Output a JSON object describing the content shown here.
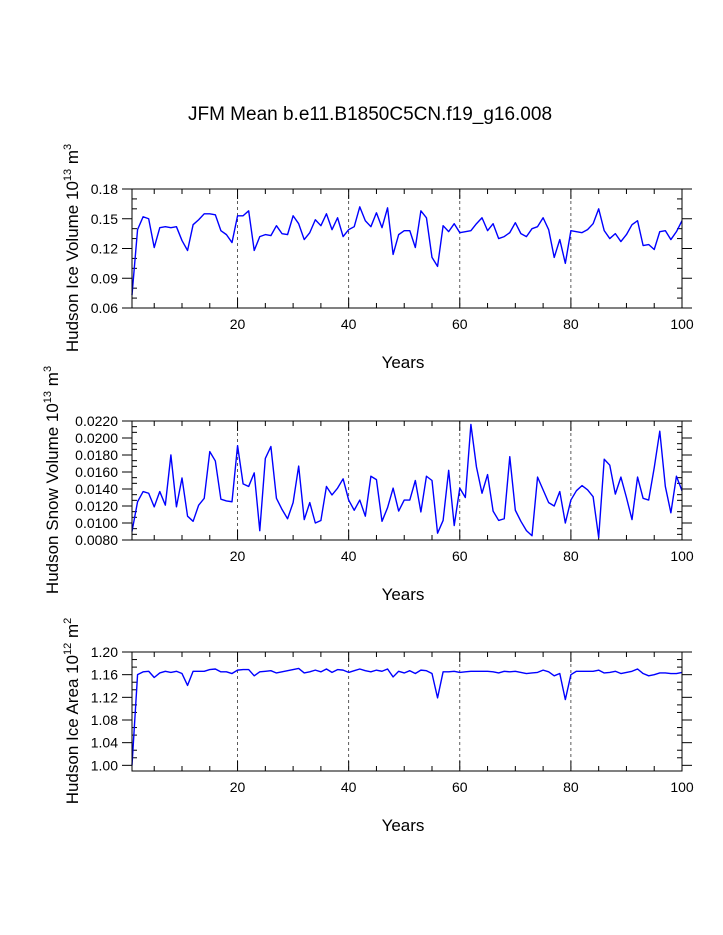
{
  "title": "JFM Mean b.e11.B1850C5CN.f19_g16.008",
  "colors": {
    "series": "#0000ff",
    "axis": "#000000"
  },
  "chart_data": [
    {
      "type": "line",
      "xlabel": "Years",
      "ylabel_main": "Hudson Ice Volume 10",
      "ylabel_exp": "13",
      "ylabel_unit": "m",
      "ylabel_unit_exp": "3",
      "xlim": [
        1,
        100
      ],
      "ylim": [
        0.06,
        0.18
      ],
      "xticks": [
        20,
        40,
        60,
        80,
        100
      ],
      "xtick_labels": [
        "20",
        "40",
        "60",
        "80",
        "100"
      ],
      "yticks": [
        0.06,
        0.09,
        0.12,
        0.15,
        0.18
      ],
      "ytick_labels": [
        "0.06",
        "0.09",
        "0.12",
        "0.15",
        "0.18"
      ],
      "grid_x": [
        20,
        40,
        60,
        80
      ],
      "series": [
        {
          "name": "Hudson Ice Volume",
          "x": [
            1,
            2,
            3,
            4,
            5,
            6,
            7,
            8,
            9,
            10,
            11,
            12,
            13,
            14,
            15,
            16,
            17,
            18,
            19,
            20,
            21,
            22,
            23,
            24,
            25,
            26,
            27,
            28,
            29,
            30,
            31,
            32,
            33,
            34,
            35,
            36,
            37,
            38,
            39,
            40,
            41,
            42,
            43,
            44,
            45,
            46,
            47,
            48,
            49,
            50,
            51,
            52,
            53,
            54,
            55,
            56,
            57,
            58,
            59,
            60,
            61,
            62,
            63,
            64,
            65,
            66,
            67,
            68,
            69,
            70,
            71,
            72,
            73,
            74,
            75,
            76,
            77,
            78,
            79,
            80,
            81,
            82,
            83,
            84,
            85,
            86,
            87,
            88,
            89,
            90,
            91,
            92,
            93,
            94,
            95,
            96,
            97,
            98,
            99,
            100
          ],
          "values": [
            0.073,
            0.139,
            0.152,
            0.15,
            0.121,
            0.141,
            0.142,
            0.141,
            0.142,
            0.128,
            0.118,
            0.144,
            0.149,
            0.155,
            0.155,
            0.154,
            0.138,
            0.134,
            0.126,
            0.153,
            0.153,
            0.158,
            0.118,
            0.132,
            0.134,
            0.133,
            0.143,
            0.135,
            0.134,
            0.153,
            0.145,
            0.129,
            0.136,
            0.149,
            0.143,
            0.155,
            0.139,
            0.151,
            0.132,
            0.139,
            0.142,
            0.162,
            0.148,
            0.142,
            0.156,
            0.141,
            0.161,
            0.114,
            0.134,
            0.138,
            0.138,
            0.121,
            0.158,
            0.151,
            0.111,
            0.102,
            0.143,
            0.137,
            0.145,
            0.136,
            0.137,
            0.138,
            0.145,
            0.151,
            0.138,
            0.145,
            0.13,
            0.132,
            0.136,
            0.146,
            0.135,
            0.132,
            0.14,
            0.142,
            0.151,
            0.139,
            0.111,
            0.129,
            0.105,
            0.138,
            0.137,
            0.136,
            0.139,
            0.145,
            0.16,
            0.138,
            0.13,
            0.135,
            0.127,
            0.134,
            0.144,
            0.148,
            0.123,
            0.124,
            0.119,
            0.137,
            0.138,
            0.129,
            0.137,
            0.148
          ]
        }
      ]
    },
    {
      "type": "line",
      "xlabel": "Years",
      "ylabel_main": "Hudson Snow Volume 10",
      "ylabel_exp": "13",
      "ylabel_unit": "m",
      "ylabel_unit_exp": "3",
      "xlim": [
        1,
        100
      ],
      "ylim": [
        0.008,
        0.022
      ],
      "xticks": [
        20,
        40,
        60,
        80,
        100
      ],
      "xtick_labels": [
        "20",
        "40",
        "60",
        "80",
        "100"
      ],
      "yticks": [
        0.008,
        0.01,
        0.012,
        0.014,
        0.016,
        0.018,
        0.02,
        0.022
      ],
      "ytick_labels": [
        "0.0080",
        "0.0100",
        "0.0120",
        "0.0140",
        "0.0160",
        "0.0180",
        "0.0200",
        "0.0220"
      ],
      "grid_x": [
        20,
        40,
        60,
        80
      ],
      "series": [
        {
          "name": "Hudson Snow Volume",
          "x": [
            1,
            2,
            3,
            4,
            5,
            6,
            7,
            8,
            9,
            10,
            11,
            12,
            13,
            14,
            15,
            16,
            17,
            18,
            19,
            20,
            21,
            22,
            23,
            24,
            25,
            26,
            27,
            28,
            29,
            30,
            31,
            32,
            33,
            34,
            35,
            36,
            37,
            38,
            39,
            40,
            41,
            42,
            43,
            44,
            45,
            46,
            47,
            48,
            49,
            50,
            51,
            52,
            53,
            54,
            55,
            56,
            57,
            58,
            59,
            60,
            61,
            62,
            63,
            64,
            65,
            66,
            67,
            68,
            69,
            70,
            71,
            72,
            73,
            74,
            75,
            76,
            77,
            78,
            79,
            80,
            81,
            82,
            83,
            84,
            85,
            86,
            87,
            88,
            89,
            90,
            91,
            92,
            93,
            94,
            95,
            96,
            97,
            98,
            99,
            100
          ],
          "values": [
            0.009,
            0.0125,
            0.0137,
            0.0135,
            0.0119,
            0.0137,
            0.0121,
            0.018,
            0.0119,
            0.0153,
            0.0108,
            0.0102,
            0.0121,
            0.0129,
            0.0184,
            0.0173,
            0.0128,
            0.0126,
            0.0125,
            0.0191,
            0.0146,
            0.0143,
            0.0159,
            0.0091,
            0.0176,
            0.019,
            0.0129,
            0.0116,
            0.0105,
            0.0124,
            0.0167,
            0.0104,
            0.0124,
            0.01,
            0.0103,
            0.0143,
            0.0133,
            0.0141,
            0.0152,
            0.0127,
            0.0115,
            0.0127,
            0.0108,
            0.0155,
            0.0151,
            0.0102,
            0.0118,
            0.0141,
            0.0114,
            0.0127,
            0.0127,
            0.015,
            0.0113,
            0.0155,
            0.015,
            0.0088,
            0.0103,
            0.0162,
            0.0097,
            0.0141,
            0.013,
            0.0216,
            0.0166,
            0.0135,
            0.0157,
            0.0114,
            0.0103,
            0.0105,
            0.0178,
            0.0115,
            0.0102,
            0.0091,
            0.0085,
            0.0154,
            0.0139,
            0.0124,
            0.012,
            0.0137,
            0.01,
            0.0127,
            0.0138,
            0.0144,
            0.0139,
            0.0131,
            0.0083,
            0.0175,
            0.0168,
            0.0134,
            0.0154,
            0.013,
            0.0104,
            0.0154,
            0.0129,
            0.0127,
            0.0165,
            0.0208,
            0.0143,
            0.0112,
            0.0155,
            0.0138
          ]
        }
      ]
    },
    {
      "type": "line",
      "xlabel": "Years",
      "ylabel_main": "Hudson Ice Area 10",
      "ylabel_exp": "12",
      "ylabel_unit": "m",
      "ylabel_unit_exp": "2",
      "xlim": [
        1,
        100
      ],
      "ylim": [
        0.99,
        1.2
      ],
      "xticks": [
        20,
        40,
        60,
        80,
        100
      ],
      "xtick_labels": [
        "20",
        "40",
        "60",
        "80",
        "100"
      ],
      "yticks": [
        1.0,
        1.04,
        1.08,
        1.12,
        1.16,
        1.2
      ],
      "ytick_labels": [
        "1.00",
        "1.04",
        "1.08",
        "1.12",
        "1.16",
        "1.20"
      ],
      "grid_x": [
        20,
        40,
        60,
        80
      ],
      "series": [
        {
          "name": "Hudson Ice Area",
          "x": [
            1,
            2,
            3,
            4,
            5,
            6,
            7,
            8,
            9,
            10,
            11,
            12,
            13,
            14,
            15,
            16,
            17,
            18,
            19,
            20,
            21,
            22,
            23,
            24,
            25,
            26,
            27,
            28,
            29,
            30,
            31,
            32,
            33,
            34,
            35,
            36,
            37,
            38,
            39,
            40,
            41,
            42,
            43,
            44,
            45,
            46,
            47,
            48,
            49,
            50,
            51,
            52,
            53,
            54,
            55,
            56,
            57,
            58,
            59,
            60,
            61,
            62,
            63,
            64,
            65,
            66,
            67,
            68,
            69,
            70,
            71,
            72,
            73,
            74,
            75,
            76,
            77,
            78,
            79,
            80,
            81,
            82,
            83,
            84,
            85,
            86,
            87,
            88,
            89,
            90,
            91,
            92,
            93,
            94,
            95,
            96,
            97,
            98,
            99,
            100
          ],
          "values": [
            1.0,
            1.16,
            1.165,
            1.166,
            1.155,
            1.163,
            1.166,
            1.164,
            1.166,
            1.162,
            1.141,
            1.166,
            1.166,
            1.166,
            1.169,
            1.17,
            1.165,
            1.165,
            1.162,
            1.168,
            1.169,
            1.169,
            1.158,
            1.165,
            1.166,
            1.167,
            1.163,
            1.165,
            1.167,
            1.169,
            1.171,
            1.163,
            1.165,
            1.168,
            1.165,
            1.17,
            1.164,
            1.169,
            1.168,
            1.164,
            1.167,
            1.17,
            1.167,
            1.165,
            1.168,
            1.166,
            1.17,
            1.156,
            1.166,
            1.163,
            1.167,
            1.162,
            1.168,
            1.167,
            1.162,
            1.119,
            1.165,
            1.165,
            1.166,
            1.164,
            1.165,
            1.166,
            1.166,
            1.166,
            1.166,
            1.165,
            1.163,
            1.166,
            1.165,
            1.166,
            1.164,
            1.162,
            1.163,
            1.164,
            1.168,
            1.165,
            1.158,
            1.162,
            1.116,
            1.16,
            1.166,
            1.166,
            1.166,
            1.166,
            1.168,
            1.163,
            1.164,
            1.166,
            1.162,
            1.164,
            1.166,
            1.17,
            1.162,
            1.158,
            1.16,
            1.163,
            1.163,
            1.162,
            1.162,
            1.164
          ]
        }
      ]
    }
  ]
}
